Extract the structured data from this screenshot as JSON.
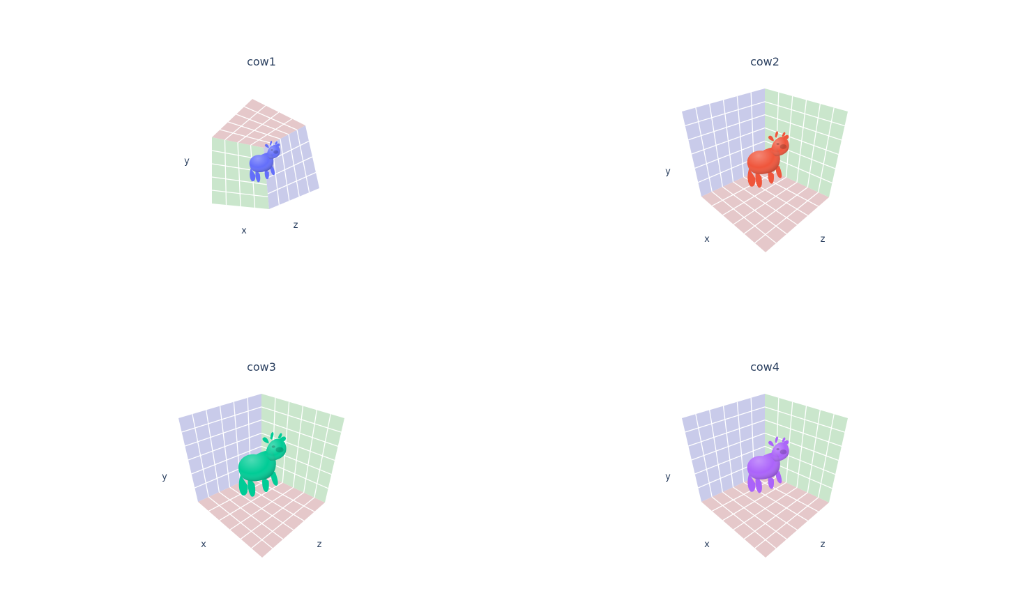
{
  "chart_data": [
    {
      "type": "mesh3d",
      "title": "cow1",
      "axis_labels": {
        "x": "x",
        "y": "y",
        "z": "z"
      },
      "mesh_color": "#636efa",
      "pane_colors": {
        "xy_wall": "#c9cbea",
        "yz_wall": "#cae6cc",
        "xz_floor": "#e5c8ca"
      },
      "view": "rotated"
    },
    {
      "type": "mesh3d",
      "title": "cow2",
      "axis_labels": {
        "x": "x",
        "y": "y",
        "z": "z"
      },
      "mesh_color": "#ef553b",
      "pane_colors": {
        "xy_wall": "#c9cbea",
        "yz_wall": "#cae6cc",
        "xz_floor": "#e5c8ca"
      },
      "view": "default"
    },
    {
      "type": "mesh3d",
      "title": "cow3",
      "axis_labels": {
        "x": "x",
        "y": "y",
        "z": "z"
      },
      "mesh_color": "#00cc96",
      "pane_colors": {
        "xy_wall": "#c9cbea",
        "yz_wall": "#cae6cc",
        "xz_floor": "#e5c8ca"
      },
      "view": "default"
    },
    {
      "type": "mesh3d",
      "title": "cow4",
      "axis_labels": {
        "x": "x",
        "y": "y",
        "z": "z"
      },
      "mesh_color": "#ab63fa",
      "pane_colors": {
        "xy_wall": "#c9cbea",
        "yz_wall": "#cae6cc",
        "xz_floor": "#e5c8ca"
      },
      "view": "default"
    }
  ]
}
